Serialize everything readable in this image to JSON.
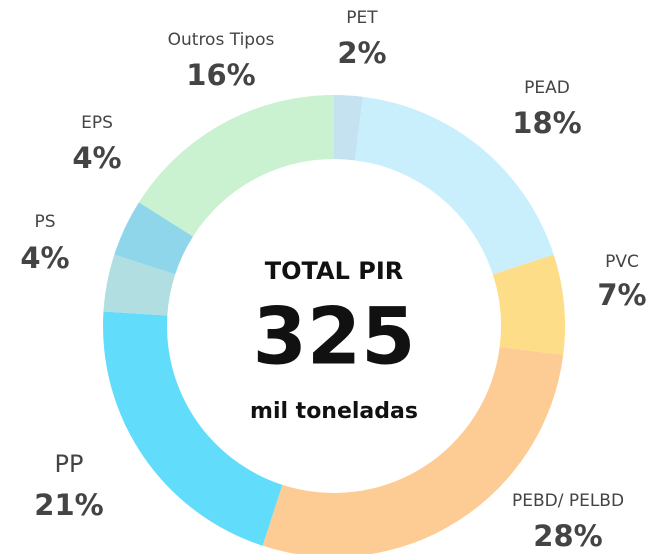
{
  "chart_data": {
    "type": "donut",
    "center_title": "TOTAL PIR",
    "center_value": "325",
    "center_unit": "mil toneladas",
    "categories": [
      "PET",
      "PEAD",
      "PVC",
      "PEBD/ PELBD",
      "PP",
      "PS",
      "EPS",
      "Outros Tipos"
    ],
    "values": [
      2,
      18,
      7,
      28,
      21,
      4,
      4,
      16
    ],
    "value_labels": [
      "2%",
      "18%",
      "7%",
      "28%",
      "21%",
      "4%",
      "4%",
      "16%"
    ],
    "colors": [
      "#c4e2ef",
      "#c9eefc",
      "#fedd88",
      "#fdcb94",
      "#62dcfb",
      "#b1dfe1",
      "#90d6ea",
      "#caf2d0"
    ]
  }
}
